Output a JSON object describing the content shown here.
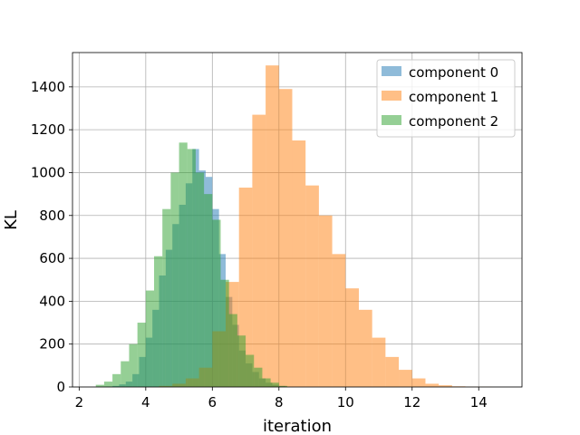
{
  "chart_data": {
    "type": "bar",
    "title": "",
    "xlabel": "iteration",
    "ylabel": "KL",
    "xlim": [
      1.8,
      15.3
    ],
    "ylim": [
      0,
      1560
    ],
    "xticks": [
      2,
      4,
      6,
      8,
      10,
      12,
      14
    ],
    "yticks": [
      0,
      200,
      400,
      600,
      800,
      1000,
      1200,
      1400
    ],
    "grid": true,
    "legend_position": "top-right",
    "series": [
      {
        "name": "component 0",
        "color": "#1f77b4",
        "opacity": 0.5,
        "bins": [
          2.8,
          3.0,
          3.2,
          3.4,
          3.6,
          3.8,
          4.0,
          4.2,
          4.4,
          4.6,
          4.8,
          5.0,
          5.2,
          5.4,
          5.6,
          5.8,
          6.0,
          6.2,
          6.4,
          6.6,
          6.8,
          7.0,
          7.2,
          7.4,
          7.6,
          7.8,
          8.0
        ],
        "values": [
          2,
          5,
          12,
          25,
          60,
          140,
          230,
          360,
          520,
          640,
          760,
          850,
          950,
          1110,
          1010,
          980,
          830,
          620,
          420,
          290,
          170,
          110,
          70,
          40,
          20,
          10,
          5
        ]
      },
      {
        "name": "component 1",
        "color": "#ff7f0e",
        "opacity": 0.5,
        "bins": [
          4.4,
          4.8,
          5.2,
          5.6,
          6.0,
          6.4,
          6.8,
          7.2,
          7.6,
          8.0,
          8.4,
          8.8,
          9.2,
          9.6,
          10.0,
          10.4,
          10.8,
          11.2,
          11.6,
          12.0,
          12.4,
          12.8,
          13.2,
          13.6,
          14.0,
          14.4,
          14.8,
          15.2
        ],
        "values": [
          5,
          15,
          40,
          90,
          260,
          490,
          930,
          1270,
          1500,
          1390,
          1150,
          940,
          800,
          620,
          460,
          360,
          230,
          140,
          80,
          40,
          15,
          8,
          3,
          1,
          1,
          0,
          0
        ],
        "bin_edges_note": ""
      },
      {
        "name": "component 2",
        "color": "#2ca02c",
        "opacity": 0.5,
        "bins": [
          2.5,
          2.75,
          3.0,
          3.25,
          3.5,
          3.75,
          4.0,
          4.25,
          4.5,
          4.75,
          5.0,
          5.25,
          5.5,
          5.75,
          6.0,
          6.25,
          6.5,
          6.75,
          7.0,
          7.25,
          7.5,
          7.75,
          8.0,
          8.25
        ],
        "values": [
          10,
          25,
          60,
          120,
          200,
          300,
          450,
          610,
          830,
          1000,
          1140,
          1110,
          1000,
          900,
          780,
          500,
          340,
          240,
          150,
          90,
          40,
          20,
          5
        ]
      }
    ]
  }
}
